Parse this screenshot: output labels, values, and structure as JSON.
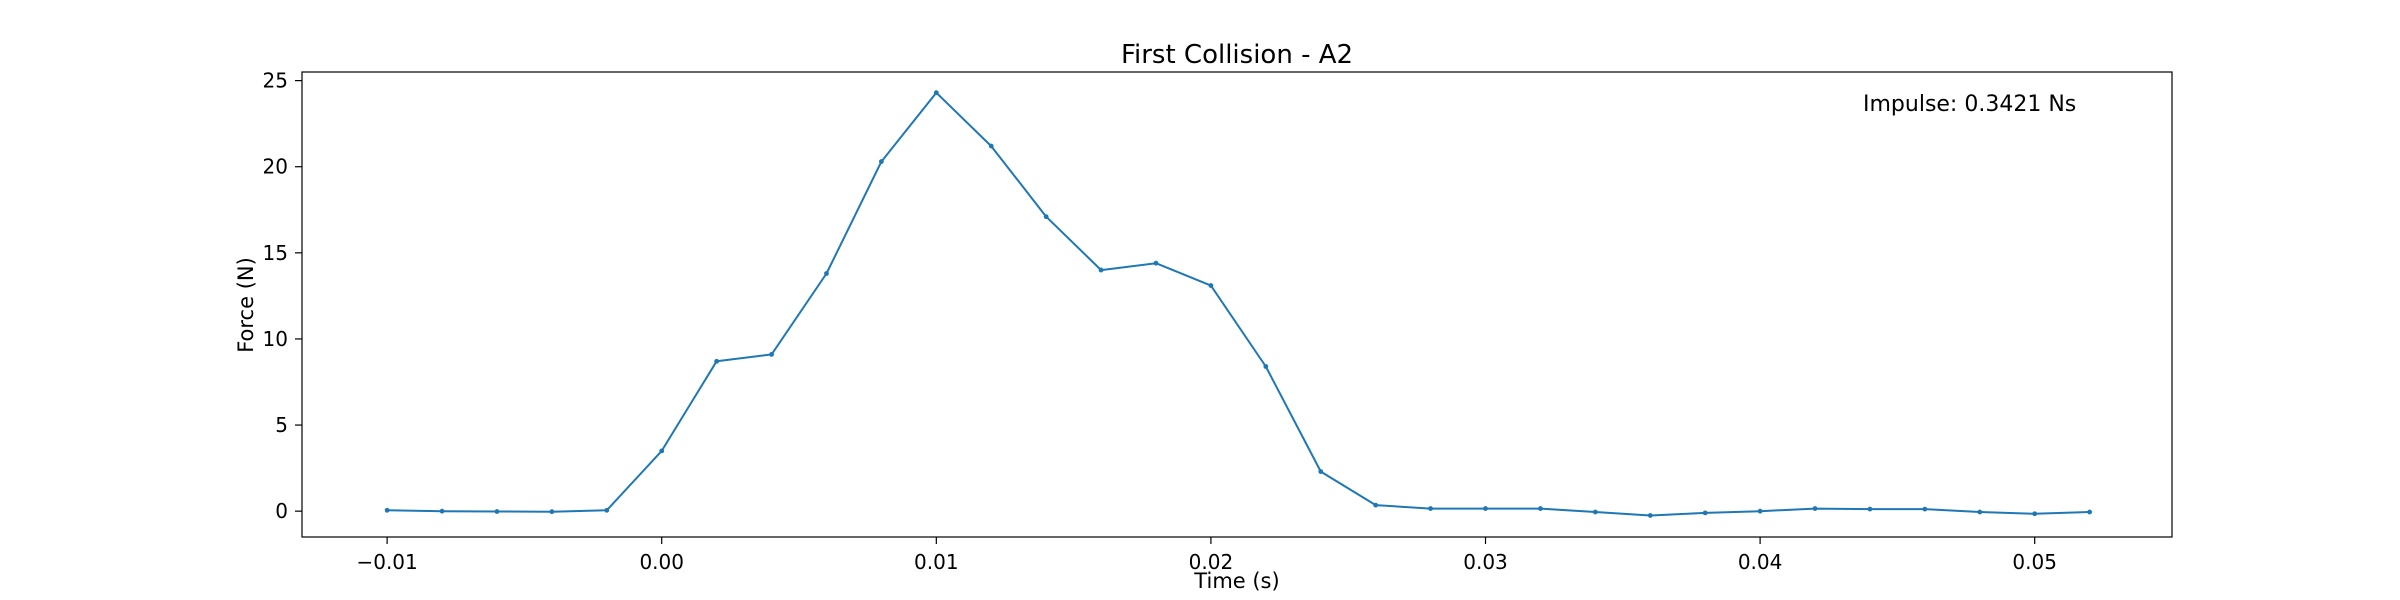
{
  "chart_data": {
    "type": "line",
    "title": "First Collision - A2",
    "xlabel": "Time (s)",
    "ylabel": "Force (N)",
    "xlim": [
      -0.0131,
      0.055
    ],
    "ylim": [
      -1.5,
      25.5
    ],
    "xticks": [
      -0.01,
      0.0,
      0.01,
      0.02,
      0.03,
      0.04,
      0.05
    ],
    "xtick_labels": [
      "−0.01",
      "0.00",
      "0.01",
      "0.02",
      "0.03",
      "0.04",
      "0.05"
    ],
    "yticks": [
      0,
      5,
      10,
      15,
      20,
      25
    ],
    "ytick_labels": [
      "0",
      "5",
      "10",
      "15",
      "20",
      "25"
    ],
    "grid": false,
    "annotation": "Impulse: 0.3421 Ns",
    "series": [
      {
        "color": "#1f77b4",
        "x": [
          -0.01,
          -0.008,
          -0.006,
          -0.004,
          -0.002,
          0.0,
          0.002,
          0.004,
          0.006,
          0.008,
          0.01,
          0.012,
          0.014,
          0.016,
          0.018,
          0.02,
          0.022,
          0.024,
          0.026,
          0.028,
          0.03,
          0.032,
          0.034,
          0.036,
          0.038,
          0.04,
          0.042,
          0.044,
          0.046,
          0.048,
          0.05,
          0.052
        ],
        "y": [
          0.05,
          0.0,
          -0.02,
          -0.03,
          0.05,
          3.5,
          8.7,
          9.1,
          13.8,
          20.3,
          24.3,
          21.2,
          17.1,
          14.0,
          14.4,
          13.1,
          8.4,
          2.3,
          0.35,
          0.15,
          0.15,
          0.15,
          -0.05,
          -0.25,
          -0.1,
          0.0,
          0.15,
          0.12,
          0.12,
          -0.05,
          -0.15,
          -0.05
        ]
      }
    ]
  }
}
